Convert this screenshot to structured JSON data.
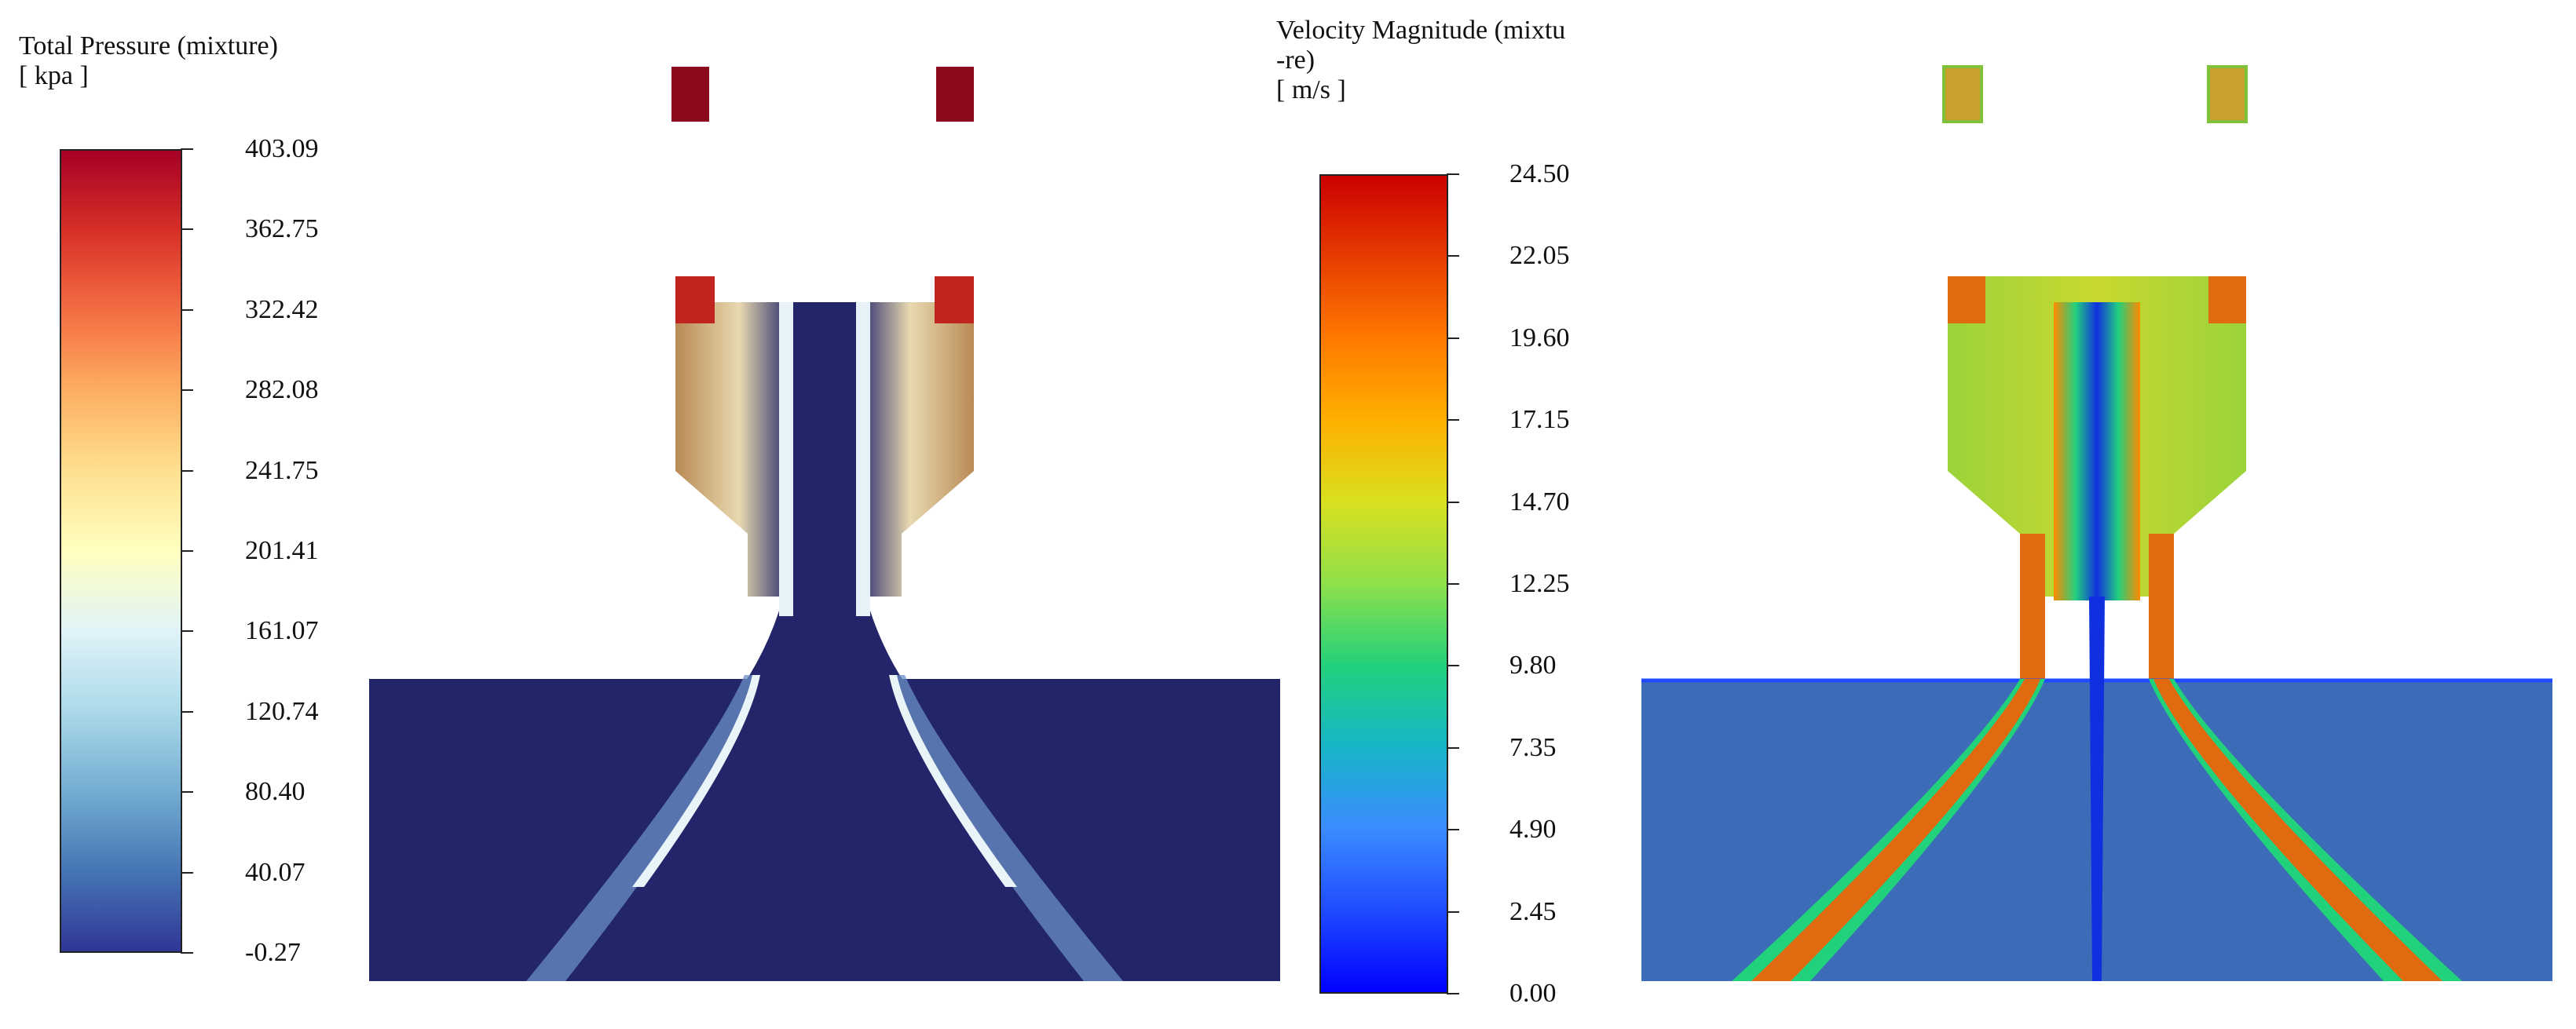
{
  "panels": [
    {
      "title_line1": "Total Pressure (mixture)",
      "title_line2": "[ kpa ]",
      "ticks": [
        "403.09",
        "362.75",
        "322.42",
        "282.08",
        "241.75",
        "201.41",
        "161.07",
        "120.74",
        "80.40",
        "40.07",
        "-0.27"
      ],
      "colormap": [
        "#a50026",
        "#d73027",
        "#f46d43",
        "#fdae61",
        "#fee090",
        "#ffffbf",
        "#e0f3f8",
        "#abd9e9",
        "#74add1",
        "#4575b4",
        "#313695"
      ],
      "colors": {
        "background": "#23256a",
        "jet": "#ffffff",
        "chamber": "#b98a55",
        "hot": "#c0241f"
      }
    },
    {
      "title_line1": "Velocity Magnitude (mixtu",
      "title_line2": "-re)",
      "title_line3": "[ m/s ]",
      "ticks": [
        "24.50",
        "22.05",
        "19.60",
        "17.15",
        "14.70",
        "12.25",
        "9.80",
        "7.35",
        "4.90",
        "2.45",
        "0.00"
      ],
      "colormap": [
        "#cc0000",
        "#e63c00",
        "#ff7a00",
        "#ffb000",
        "#d9e020",
        "#8ee04a",
        "#22d17c",
        "#17b5c8",
        "#3b8cff",
        "#1f4bff",
        "#0000ff"
      ],
      "colors": {
        "background": "#3c6bb8",
        "jet": "#d94a10",
        "chamber": "#7fc23a",
        "core": "#1030e0"
      }
    }
  ]
}
